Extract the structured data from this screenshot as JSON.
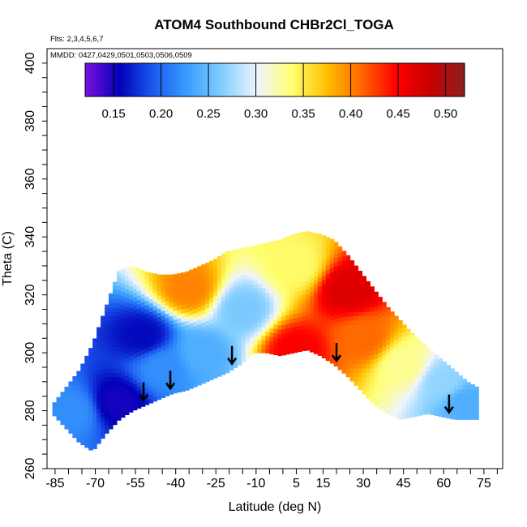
{
  "chart_data": {
    "type": "heatmap",
    "title": "ATOM4 Southbound CHBr2Cl_TOGA",
    "notes": {
      "flights": "Flts: 2,3,4,5,6,7",
      "dates": "MMDD: 0427,0429,0501,0503,0506,0509"
    },
    "xlabel": "Latitude (deg N)",
    "ylabel": "Theta (C)",
    "xlim": [
      -88,
      82
    ],
    "ylim": [
      260,
      405
    ],
    "x_ticks": [
      -85,
      -70,
      -55,
      -40,
      -25,
      -10,
      5,
      15,
      30,
      45,
      60,
      75
    ],
    "y_ticks": [
      260,
      280,
      300,
      320,
      340,
      360,
      380,
      400
    ],
    "colorbar": {
      "min": 0.12,
      "max": 0.52,
      "ticks": [
        0.15,
        0.2,
        0.25,
        0.3,
        0.35,
        0.4,
        0.45,
        0.5
      ],
      "tick_labels": [
        "0.15",
        "0.20",
        "0.25",
        "0.30",
        "0.35",
        "0.40",
        "0.45",
        "0.50"
      ],
      "colors": [
        "#7b10e0",
        "#0000b8",
        "#1c5cf0",
        "#3aa0ff",
        "#86d0ff",
        "#f0f4ff",
        "#ffff70",
        "#ffc000",
        "#ff6800",
        "#ff0000",
        "#c80000",
        "#8c2020"
      ]
    },
    "arrow_latitudes": [
      -52,
      -42,
      -19,
      20,
      62
    ],
    "profile_upper_theta": {
      "lat": [
        -86,
        -81,
        -76,
        -71,
        -66,
        -61,
        -56,
        -51,
        -46,
        -41,
        -36,
        -31,
        -26,
        -21,
        -16,
        -11,
        -6,
        -1,
        4,
        9,
        14,
        19,
        24,
        29,
        34,
        39,
        44,
        49,
        54,
        59,
        64,
        69,
        73
      ],
      "theta": [
        282,
        288,
        294,
        303,
        316,
        329,
        330,
        328,
        327,
        327,
        328,
        330,
        332,
        335,
        336,
        337,
        338,
        339,
        341,
        342,
        341,
        339,
        334,
        328,
        322,
        316,
        311,
        306,
        302,
        298,
        294,
        290,
        288
      ]
    },
    "profile_lower_theta": {
      "lat": [
        -86,
        -81,
        -76,
        -71,
        -66,
        -61,
        -56,
        -51,
        -46,
        -41,
        -36,
        -31,
        -26,
        -21,
        -16,
        -11,
        -6,
        -1,
        4,
        9,
        14,
        19,
        24,
        29,
        34,
        39,
        44,
        49,
        54,
        59,
        64,
        69,
        73
      ],
      "theta": [
        279,
        274,
        269,
        266,
        272,
        277,
        280,
        282,
        284,
        286,
        287,
        289,
        291,
        293,
        296,
        300,
        300,
        299,
        300,
        301,
        299,
        296,
        292,
        287,
        282,
        279,
        277,
        278,
        279,
        278,
        277,
        277,
        277
      ]
    },
    "field_features": [
      {
        "lat": 24,
        "theta": 322,
        "value": 0.47
      },
      {
        "lat": 30,
        "theta": 305,
        "value": 0.41
      },
      {
        "lat": 5,
        "theta": 301,
        "value": 0.45
      },
      {
        "lat": 5,
        "theta": 330,
        "value": 0.34
      },
      {
        "lat": -35,
        "theta": 322,
        "value": 0.4
      },
      {
        "lat": -52,
        "theta": 306,
        "value": 0.16
      },
      {
        "lat": -62,
        "theta": 283,
        "value": 0.15
      },
      {
        "lat": -78,
        "theta": 280,
        "value": 0.22
      },
      {
        "lat": -30,
        "theta": 300,
        "value": 0.24
      },
      {
        "lat": -15,
        "theta": 315,
        "value": 0.26
      },
      {
        "lat": 60,
        "theta": 290,
        "value": 0.27
      },
      {
        "lat": 68,
        "theta": 283,
        "value": 0.24
      },
      {
        "lat": -45,
        "theta": 295,
        "value": 0.22
      },
      {
        "lat": 45,
        "theta": 296,
        "value": 0.33
      }
    ]
  }
}
